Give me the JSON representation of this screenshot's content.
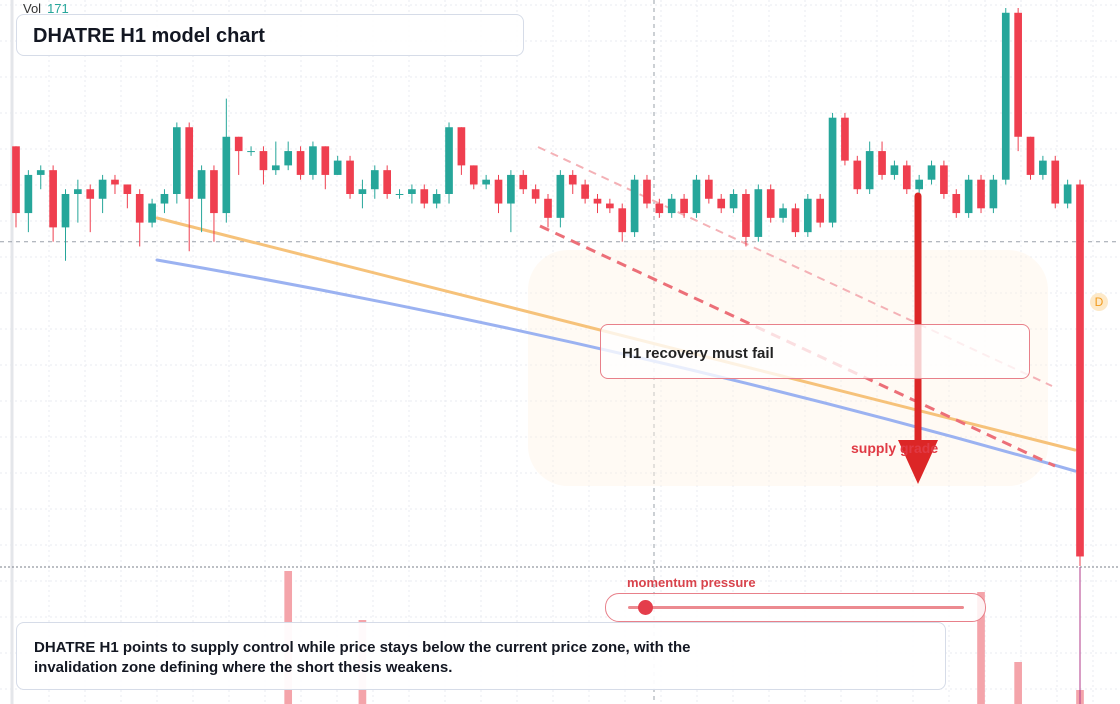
{
  "header": {
    "vol_label": "Vol",
    "vol_value": "171",
    "title": "DHATRE H1 model chart"
  },
  "annotations": {
    "callout": "H1 recovery must fail",
    "supply": "supply grade",
    "momentum_label": "momentum pressure",
    "momentum_level": 0.05,
    "summary": "DHATRE H1 points to supply control while price stays below the current price zone, with the invalidation zone defining where the short thesis weakens.",
    "badge": "D"
  },
  "colors": {
    "up": "#26a69a",
    "down": "#ef3f4f",
    "orange_line": "#f6c27a",
    "blue_line": "#9bb2f1",
    "red_dashed": "#ec6f78",
    "pink_dashed": "#f4b1b6",
    "arrow": "#dc2626",
    "grid": "#e8ebf0"
  },
  "chart_data": {
    "type": "candlestick",
    "candles": [
      {
        "o": 0.0,
        "c": -0.7,
        "h": 0.0,
        "l": -0.85
      },
      {
        "o": -0.7,
        "c": -0.3,
        "h": -0.25,
        "l": -0.9
      },
      {
        "o": -0.3,
        "c": -0.25,
        "h": -0.2,
        "l": -0.45
      },
      {
        "o": -0.25,
        "c": -0.85,
        "h": -0.2,
        "l": -1.0
      },
      {
        "o": -0.85,
        "c": -0.5,
        "h": -0.45,
        "l": -1.2
      },
      {
        "o": -0.5,
        "c": -0.45,
        "h": -0.35,
        "l": -0.8
      },
      {
        "o": -0.45,
        "c": -0.55,
        "h": -0.4,
        "l": -0.9
      },
      {
        "o": -0.55,
        "c": -0.35,
        "h": -0.3,
        "l": -0.7
      },
      {
        "o": -0.35,
        "c": -0.4,
        "h": -0.3,
        "l": -0.5
      },
      {
        "o": -0.4,
        "c": -0.5,
        "h": -0.4,
        "l": -0.65
      },
      {
        "o": -0.5,
        "c": -0.8,
        "h": -0.45,
        "l": -1.05
      },
      {
        "o": -0.8,
        "c": -0.6,
        "h": -0.55,
        "l": -0.85
      },
      {
        "o": -0.6,
        "c": -0.5,
        "h": -0.45,
        "l": -0.7
      },
      {
        "o": -0.5,
        "c": 0.2,
        "h": 0.25,
        "l": -0.6
      },
      {
        "o": 0.2,
        "c": -0.55,
        "h": 0.25,
        "l": -1.1
      },
      {
        "o": -0.55,
        "c": -0.25,
        "h": -0.2,
        "l": -0.9
      },
      {
        "o": -0.25,
        "c": -0.7,
        "h": -0.2,
        "l": -1.0
      },
      {
        "o": -0.7,
        "c": 0.1,
        "h": 0.5,
        "l": -0.8
      },
      {
        "o": 0.1,
        "c": -0.05,
        "h": 0.1,
        "l": -0.3
      },
      {
        "o": -0.05,
        "c": -0.05,
        "h": 0.0,
        "l": -0.1
      },
      {
        "o": -0.05,
        "c": -0.25,
        "h": 0.0,
        "l": -0.4
      },
      {
        "o": -0.25,
        "c": -0.2,
        "h": 0.05,
        "l": -0.3
      },
      {
        "o": -0.2,
        "c": -0.05,
        "h": 0.05,
        "l": -0.25
      },
      {
        "o": -0.05,
        "c": -0.3,
        "h": 0.0,
        "l": -0.35
      },
      {
        "o": -0.3,
        "c": 0.0,
        "h": 0.05,
        "l": -0.35
      },
      {
        "o": 0.0,
        "c": -0.3,
        "h": 0.0,
        "l": -0.45
      },
      {
        "o": -0.3,
        "c": -0.15,
        "h": -0.1,
        "l": -0.3
      },
      {
        "o": -0.15,
        "c": -0.5,
        "h": -0.1,
        "l": -0.55
      },
      {
        "o": -0.5,
        "c": -0.45,
        "h": -0.35,
        "l": -0.65
      },
      {
        "o": -0.45,
        "c": -0.25,
        "h": -0.2,
        "l": -0.55
      },
      {
        "o": -0.25,
        "c": -0.5,
        "h": -0.2,
        "l": -0.55
      },
      {
        "o": -0.5,
        "c": -0.5,
        "h": -0.45,
        "l": -0.55
      },
      {
        "o": -0.5,
        "c": -0.45,
        "h": -0.4,
        "l": -0.6
      },
      {
        "o": -0.45,
        "c": -0.6,
        "h": -0.4,
        "l": -0.65
      },
      {
        "o": -0.6,
        "c": -0.5,
        "h": -0.45,
        "l": -0.65
      },
      {
        "o": -0.5,
        "c": 0.2,
        "h": 0.25,
        "l": -0.6
      },
      {
        "o": 0.2,
        "c": -0.2,
        "h": 0.2,
        "l": -0.3
      },
      {
        "o": -0.2,
        "c": -0.4,
        "h": -0.2,
        "l": -0.45
      },
      {
        "o": -0.4,
        "c": -0.35,
        "h": -0.3,
        "l": -0.45
      },
      {
        "o": -0.35,
        "c": -0.6,
        "h": -0.3,
        "l": -0.7
      },
      {
        "o": -0.6,
        "c": -0.3,
        "h": -0.25,
        "l": -0.9
      },
      {
        "o": -0.3,
        "c": -0.45,
        "h": -0.25,
        "l": -0.5
      },
      {
        "o": -0.45,
        "c": -0.55,
        "h": -0.4,
        "l": -0.6
      },
      {
        "o": -0.55,
        "c": -0.75,
        "h": -0.5,
        "l": -0.85
      },
      {
        "o": -0.75,
        "c": -0.3,
        "h": -0.25,
        "l": -0.85
      },
      {
        "o": -0.3,
        "c": -0.4,
        "h": -0.25,
        "l": -0.5
      },
      {
        "o": -0.4,
        "c": -0.55,
        "h": -0.35,
        "l": -0.6
      },
      {
        "o": -0.55,
        "c": -0.6,
        "h": -0.5,
        "l": -0.7
      },
      {
        "o": -0.6,
        "c": -0.65,
        "h": -0.55,
        "l": -0.7
      },
      {
        "o": -0.65,
        "c": -0.9,
        "h": -0.6,
        "l": -1.0
      },
      {
        "o": -0.9,
        "c": -0.35,
        "h": -0.3,
        "l": -0.95
      },
      {
        "o": -0.35,
        "c": -0.6,
        "h": -0.3,
        "l": -0.65
      },
      {
        "o": -0.6,
        "c": -0.7,
        "h": -0.55,
        "l": -0.75
      },
      {
        "o": -0.7,
        "c": -0.55,
        "h": -0.5,
        "l": -0.75
      },
      {
        "o": -0.55,
        "c": -0.7,
        "h": -0.5,
        "l": -0.75
      },
      {
        "o": -0.7,
        "c": -0.35,
        "h": -0.3,
        "l": -0.75
      },
      {
        "o": -0.35,
        "c": -0.55,
        "h": -0.3,
        "l": -0.6
      },
      {
        "o": -0.55,
        "c": -0.65,
        "h": -0.5,
        "l": -0.7
      },
      {
        "o": -0.65,
        "c": -0.5,
        "h": -0.45,
        "l": -0.7
      },
      {
        "o": -0.5,
        "c": -0.95,
        "h": -0.45,
        "l": -1.05
      },
      {
        "o": -0.95,
        "c": -0.45,
        "h": -0.4,
        "l": -1.0
      },
      {
        "o": -0.45,
        "c": -0.75,
        "h": -0.4,
        "l": -0.8
      },
      {
        "o": -0.75,
        "c": -0.65,
        "h": -0.6,
        "l": -0.8
      },
      {
        "o": -0.65,
        "c": -0.9,
        "h": -0.6,
        "l": -0.95
      },
      {
        "o": -0.9,
        "c": -0.55,
        "h": -0.5,
        "l": -0.95
      },
      {
        "o": -0.55,
        "c": -0.8,
        "h": -0.5,
        "l": -0.85
      },
      {
        "o": -0.8,
        "c": 0.3,
        "h": 0.35,
        "l": -0.85
      },
      {
        "o": 0.3,
        "c": -0.15,
        "h": 0.35,
        "l": -0.2
      },
      {
        "o": -0.15,
        "c": -0.45,
        "h": -0.1,
        "l": -0.5
      },
      {
        "o": -0.45,
        "c": -0.05,
        "h": 0.05,
        "l": -0.5
      },
      {
        "o": -0.05,
        "c": -0.3,
        "h": 0.05,
        "l": -0.35
      },
      {
        "o": -0.3,
        "c": -0.2,
        "h": -0.15,
        "l": -0.35
      },
      {
        "o": -0.2,
        "c": -0.45,
        "h": -0.15,
        "l": -0.5
      },
      {
        "o": -0.45,
        "c": -0.35,
        "h": -0.3,
        "l": -0.5
      },
      {
        "o": -0.35,
        "c": -0.2,
        "h": -0.15,
        "l": -0.4
      },
      {
        "o": -0.2,
        "c": -0.5,
        "h": -0.15,
        "l": -0.55
      },
      {
        "o": -0.5,
        "c": -0.7,
        "h": -0.45,
        "l": -0.75
      },
      {
        "o": -0.7,
        "c": -0.35,
        "h": -0.3,
        "l": -0.75
      },
      {
        "o": -0.35,
        "c": -0.65,
        "h": -0.3,
        "l": -0.7
      },
      {
        "o": -0.65,
        "c": -0.35,
        "h": -0.3,
        "l": -0.7
      },
      {
        "o": -0.35,
        "c": 1.4,
        "h": 1.45,
        "l": -0.4
      },
      {
        "o": 1.4,
        "c": 0.1,
        "h": 1.45,
        "l": -0.05
      },
      {
        "o": 0.1,
        "c": -0.3,
        "h": 0.1,
        "l": -0.35
      },
      {
        "o": -0.3,
        "c": -0.15,
        "h": -0.1,
        "l": -0.35
      },
      {
        "o": -0.15,
        "c": -0.6,
        "h": -0.1,
        "l": -0.65
      },
      {
        "o": -0.6,
        "c": -0.4,
        "h": -0.35,
        "l": -0.65
      },
      {
        "o": -0.4,
        "c": -4.3,
        "h": -0.35,
        "l": -4.4
      }
    ],
    "current_price_zone": -1.0,
    "volume_bars": [
      {
        "i": 22,
        "v": 0.95
      },
      {
        "i": 28,
        "v": 0.6
      },
      {
        "i": 78,
        "v": 0.8
      },
      {
        "i": 81,
        "v": 0.3
      }
    ]
  }
}
